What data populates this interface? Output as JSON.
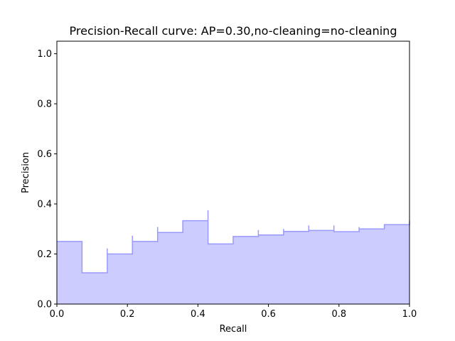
{
  "chart_data": {
    "type": "area",
    "title": "Precision-Recall curve: AP=0.30,no-cleaning=no-cleaning",
    "xlabel": "Recall",
    "ylabel": "Precision",
    "xlim": [
      0.0,
      1.0
    ],
    "ylim": [
      0.0,
      1.05
    ],
    "xticks": [
      0.0,
      0.2,
      0.4,
      0.6,
      0.8,
      1.0
    ],
    "yticks": [
      0.0,
      0.2,
      0.4,
      0.6,
      0.8,
      1.0
    ],
    "xtick_labels": [
      "0.0",
      "0.2",
      "0.4",
      "0.6",
      "0.8",
      "1.0"
    ],
    "ytick_labels": [
      "0.0",
      "0.2",
      "0.4",
      "0.6",
      "0.8",
      "1.0"
    ],
    "grid": false,
    "legend": "none",
    "step": "post",
    "fill_color": "#ccccff",
    "line_color": "#9999ff",
    "series": [
      {
        "recall": [
          0.0,
          0.0714,
          0.0714,
          0.1429,
          0.1429,
          0.2143,
          0.2143,
          0.2857,
          0.2857,
          0.3571,
          0.4286,
          0.4286,
          0.5,
          0.5714,
          0.5714,
          0.6429,
          0.6429,
          0.7143,
          0.7143,
          0.7857,
          0.7857,
          0.8571,
          0.8571,
          0.9286,
          1.0
        ],
        "precision": [
          0.25,
          0.25,
          0.125,
          0.222,
          0.2,
          0.273,
          0.25,
          0.308,
          0.286,
          0.333,
          0.375,
          0.24,
          0.27,
          0.296,
          0.276,
          0.3,
          0.29,
          0.314,
          0.294,
          0.314,
          0.289,
          0.308,
          0.3,
          0.317,
          0.333
        ]
      }
    ]
  }
}
